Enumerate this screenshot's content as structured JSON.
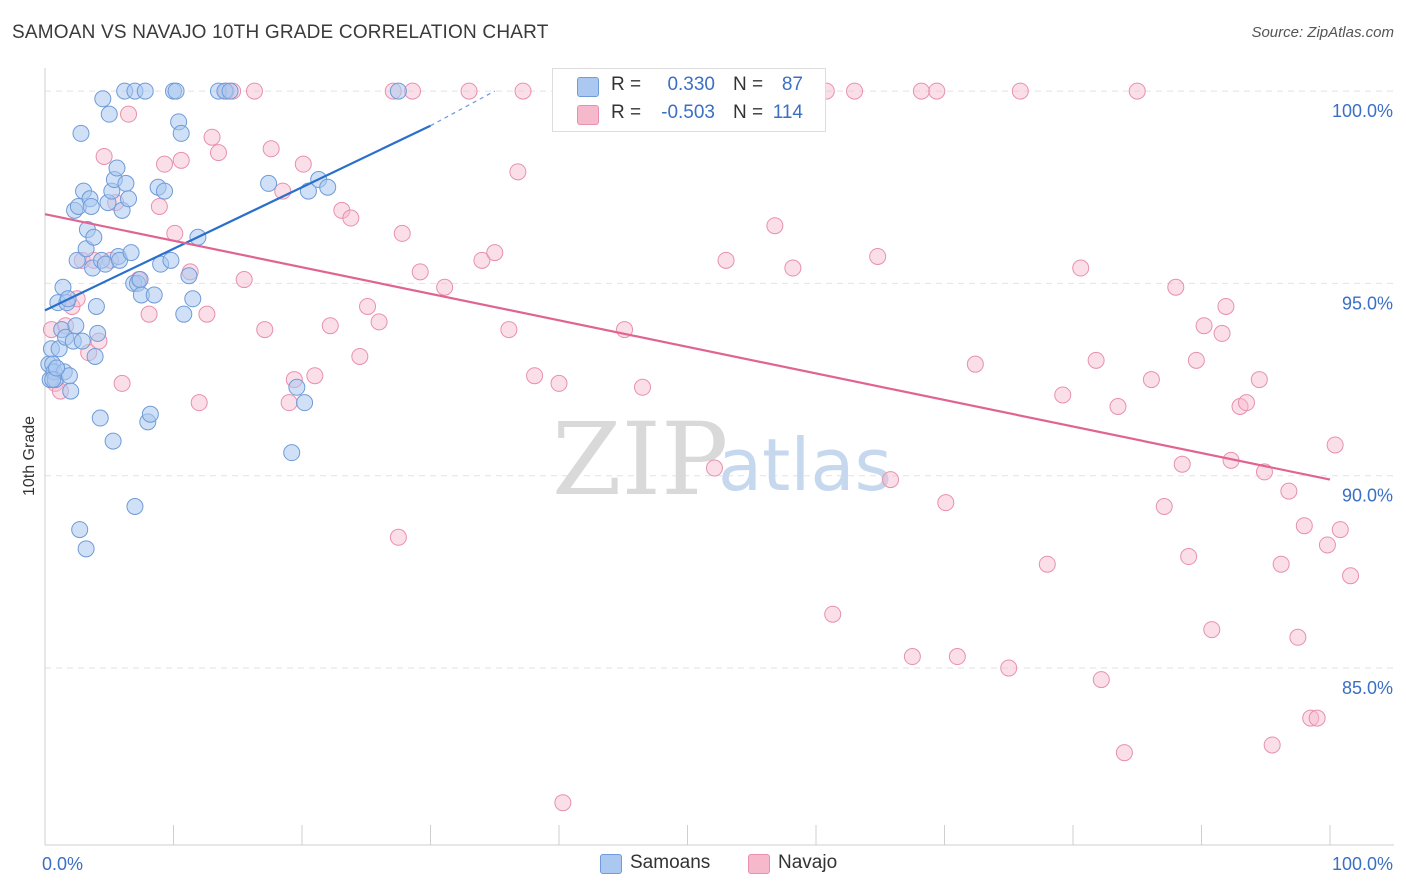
{
  "title": "SAMOAN VS NAVAJO 10TH GRADE CORRELATION CHART",
  "source": "Source: ZipAtlas.com",
  "legend": {
    "samoan": {
      "r_label": "R =",
      "r_value": "0.330",
      "n_label": "N =",
      "n_value": "87"
    },
    "navajo": {
      "r_label": "R =",
      "r_value": "-0.503",
      "n_label": "N =",
      "n_value": "114"
    }
  },
  "bottom_legend": {
    "samoan": "Samoans",
    "navajo": "Navajo"
  },
  "watermark": {
    "zip": "ZIP",
    "atlas": "atlas"
  },
  "colors": {
    "samoan_fill": "#aac8f0",
    "samoan_stroke": "#6f9bd8",
    "samoan_line": "#2a6fcc",
    "navajo_fill": "#f6b9cc",
    "navajo_stroke": "#e890ae",
    "navajo_line": "#e06492",
    "tick_text": "#3b6fc4",
    "grid": "#e2e2e2"
  },
  "chart_data": {
    "type": "scatter",
    "title": "SAMOAN VS NAVAJO 10TH GRADE CORRELATION CHART",
    "xlabel": "",
    "ylabel": "10th Grade",
    "xlim": [
      0,
      100
    ],
    "ylim": [
      80.4,
      100.6
    ],
    "x_tick_labels": [
      {
        "value": 0,
        "label": "0.0%"
      },
      {
        "value": 100,
        "label": "100.0%"
      }
    ],
    "y_tick_labels": [
      {
        "value": 85,
        "label": "85.0%"
      },
      {
        "value": 90,
        "label": "90.0%"
      },
      {
        "value": 95,
        "label": "95.0%"
      },
      {
        "value": 100,
        "label": "100.0%"
      }
    ],
    "series": [
      {
        "name": "Samoans",
        "r": 0.33,
        "n": 87,
        "trend": {
          "x": [
            0,
            30
          ],
          "y": [
            94.3,
            99.1
          ],
          "dashed_to": {
            "x": 35,
            "y": 100.0
          }
        },
        "points": [
          [
            0.3,
            92.9
          ],
          [
            0.4,
            92.5
          ],
          [
            0.5,
            93.3
          ],
          [
            0.6,
            92.9
          ],
          [
            0.7,
            92.7
          ],
          [
            0.8,
            92.5
          ],
          [
            1.0,
            94.5
          ],
          [
            1.1,
            93.3
          ],
          [
            1.3,
            93.8
          ],
          [
            1.4,
            94.9
          ],
          [
            1.5,
            92.7
          ],
          [
            1.6,
            93.6
          ],
          [
            1.7,
            94.5
          ],
          [
            1.8,
            94.6
          ],
          [
            1.9,
            92.6
          ],
          [
            2.0,
            92.2
          ],
          [
            2.2,
            93.5
          ],
          [
            2.3,
            96.9
          ],
          [
            2.4,
            93.9
          ],
          [
            2.5,
            95.6
          ],
          [
            2.6,
            97.0
          ],
          [
            2.8,
            98.9
          ],
          [
            2.9,
            93.5
          ],
          [
            3.0,
            97.4
          ],
          [
            3.2,
            95.9
          ],
          [
            3.3,
            96.4
          ],
          [
            3.5,
            97.2
          ],
          [
            3.6,
            97.0
          ],
          [
            3.7,
            95.4
          ],
          [
            3.8,
            96.2
          ],
          [
            3.9,
            93.1
          ],
          [
            4.0,
            94.4
          ],
          [
            4.1,
            93.7
          ],
          [
            4.3,
            91.5
          ],
          [
            4.4,
            95.6
          ],
          [
            4.5,
            99.8
          ],
          [
            4.7,
            95.5
          ],
          [
            4.9,
            97.1
          ],
          [
            5.0,
            99.4
          ],
          [
            5.2,
            97.4
          ],
          [
            5.4,
            97.7
          ],
          [
            5.6,
            98.0
          ],
          [
            5.7,
            95.7
          ],
          [
            5.8,
            95.6
          ],
          [
            6.0,
            96.9
          ],
          [
            6.2,
            100.0
          ],
          [
            6.3,
            97.6
          ],
          [
            6.5,
            97.2
          ],
          [
            6.7,
            95.8
          ],
          [
            6.9,
            95.0
          ],
          [
            7.0,
            100.0
          ],
          [
            7.2,
            95.0
          ],
          [
            7.4,
            95.1
          ],
          [
            7.5,
            94.7
          ],
          [
            7.8,
            100.0
          ],
          [
            8.0,
            91.4
          ],
          [
            8.2,
            91.6
          ],
          [
            8.5,
            94.7
          ],
          [
            8.8,
            97.5
          ],
          [
            9.0,
            95.5
          ],
          [
            9.3,
            97.4
          ],
          [
            9.8,
            95.6
          ],
          [
            10.0,
            100.0
          ],
          [
            10.2,
            100.0
          ],
          [
            10.4,
            99.2
          ],
          [
            10.6,
            98.9
          ],
          [
            10.8,
            94.2
          ],
          [
            11.2,
            95.2
          ],
          [
            11.5,
            94.6
          ],
          [
            11.9,
            96.2
          ],
          [
            13.5,
            100.0
          ],
          [
            14.0,
            100.0
          ],
          [
            14.4,
            100.0
          ],
          [
            17.4,
            97.6
          ],
          [
            19.2,
            90.6
          ],
          [
            19.6,
            92.3
          ],
          [
            20.2,
            91.9
          ],
          [
            20.5,
            97.4
          ],
          [
            21.3,
            97.7
          ],
          [
            22.0,
            97.5
          ],
          [
            27.5,
            100.0
          ],
          [
            2.7,
            88.6
          ],
          [
            3.2,
            88.1
          ],
          [
            7.0,
            89.2
          ],
          [
            5.3,
            90.9
          ],
          [
            0.6,
            92.5
          ],
          [
            0.9,
            92.8
          ]
        ]
      },
      {
        "name": "Navajo",
        "r": -0.503,
        "n": 114,
        "trend": {
          "x": [
            0,
            100
          ],
          "y": [
            96.8,
            89.9
          ]
        },
        "points": [
          [
            0.5,
            93.8
          ],
          [
            0.8,
            92.4
          ],
          [
            1.2,
            92.2
          ],
          [
            1.6,
            93.9
          ],
          [
            2.1,
            94.4
          ],
          [
            2.5,
            94.6
          ],
          [
            2.9,
            95.6
          ],
          [
            3.4,
            93.2
          ],
          [
            3.8,
            95.6
          ],
          [
            4.2,
            93.5
          ],
          [
            4.6,
            98.3
          ],
          [
            5.1,
            95.6
          ],
          [
            5.5,
            97.1
          ],
          [
            6.0,
            92.4
          ],
          [
            6.5,
            99.4
          ],
          [
            7.3,
            95.1
          ],
          [
            8.1,
            94.2
          ],
          [
            8.9,
            97.0
          ],
          [
            9.3,
            98.1
          ],
          [
            10.1,
            96.3
          ],
          [
            10.6,
            98.2
          ],
          [
            11.3,
            95.3
          ],
          [
            12.0,
            91.9
          ],
          [
            12.6,
            94.2
          ],
          [
            13.0,
            98.8
          ],
          [
            13.5,
            98.4
          ],
          [
            14.1,
            100.0
          ],
          [
            14.6,
            100.0
          ],
          [
            15.5,
            95.1
          ],
          [
            16.3,
            100.0
          ],
          [
            17.1,
            93.8
          ],
          [
            17.6,
            98.5
          ],
          [
            18.5,
            97.4
          ],
          [
            19.0,
            91.9
          ],
          [
            19.4,
            92.5
          ],
          [
            20.1,
            98.1
          ],
          [
            21.0,
            92.6
          ],
          [
            22.2,
            93.9
          ],
          [
            23.1,
            96.9
          ],
          [
            23.8,
            96.7
          ],
          [
            24.5,
            93.1
          ],
          [
            25.1,
            94.4
          ],
          [
            26.0,
            94.0
          ],
          [
            27.1,
            100.0
          ],
          [
            27.5,
            88.4
          ],
          [
            27.8,
            96.3
          ],
          [
            28.6,
            100.0
          ],
          [
            29.2,
            95.3
          ],
          [
            31.1,
            94.9
          ],
          [
            33.0,
            100.0
          ],
          [
            34.0,
            95.6
          ],
          [
            35.0,
            95.8
          ],
          [
            36.1,
            93.8
          ],
          [
            36.8,
            97.9
          ],
          [
            37.2,
            100.0
          ],
          [
            38.1,
            92.6
          ],
          [
            40.0,
            92.4
          ],
          [
            40.3,
            81.5
          ],
          [
            42.5,
            100.0
          ],
          [
            45.1,
            93.8
          ],
          [
            46.5,
            92.3
          ],
          [
            52.1,
            90.2
          ],
          [
            53.0,
            95.6
          ],
          [
            55.5,
            100.0
          ],
          [
            56.8,
            96.5
          ],
          [
            58.2,
            95.4
          ],
          [
            59.1,
            100.0
          ],
          [
            60.8,
            100.0
          ],
          [
            61.3,
            86.4
          ],
          [
            63.0,
            100.0
          ],
          [
            64.8,
            95.7
          ],
          [
            65.8,
            89.9
          ],
          [
            67.5,
            85.3
          ],
          [
            68.2,
            100.0
          ],
          [
            69.4,
            100.0
          ],
          [
            70.1,
            89.3
          ],
          [
            71.0,
            85.3
          ],
          [
            72.4,
            92.9
          ],
          [
            75.0,
            85.0
          ],
          [
            75.9,
            100.0
          ],
          [
            78.0,
            87.7
          ],
          [
            79.2,
            92.1
          ],
          [
            80.6,
            95.4
          ],
          [
            81.8,
            93.0
          ],
          [
            82.2,
            84.7
          ],
          [
            83.5,
            91.8
          ],
          [
            84.0,
            82.8
          ],
          [
            85.0,
            100.0
          ],
          [
            86.1,
            92.5
          ],
          [
            87.1,
            89.2
          ],
          [
            88.0,
            94.9
          ],
          [
            88.5,
            90.3
          ],
          [
            89.0,
            87.9
          ],
          [
            89.6,
            93.0
          ],
          [
            90.2,
            93.9
          ],
          [
            90.8,
            86.0
          ],
          [
            91.6,
            93.7
          ],
          [
            91.9,
            94.4
          ],
          [
            92.3,
            90.4
          ],
          [
            93.0,
            91.8
          ],
          [
            93.5,
            91.9
          ],
          [
            94.5,
            92.5
          ],
          [
            94.9,
            90.1
          ],
          [
            95.5,
            83.0
          ],
          [
            96.2,
            87.7
          ],
          [
            96.8,
            89.6
          ],
          [
            97.5,
            85.8
          ],
          [
            98.0,
            88.7
          ],
          [
            98.5,
            83.7
          ],
          [
            99.0,
            83.7
          ],
          [
            99.8,
            88.2
          ],
          [
            100.4,
            90.8
          ],
          [
            100.8,
            88.6
          ],
          [
            101.6,
            87.4
          ]
        ]
      }
    ]
  }
}
